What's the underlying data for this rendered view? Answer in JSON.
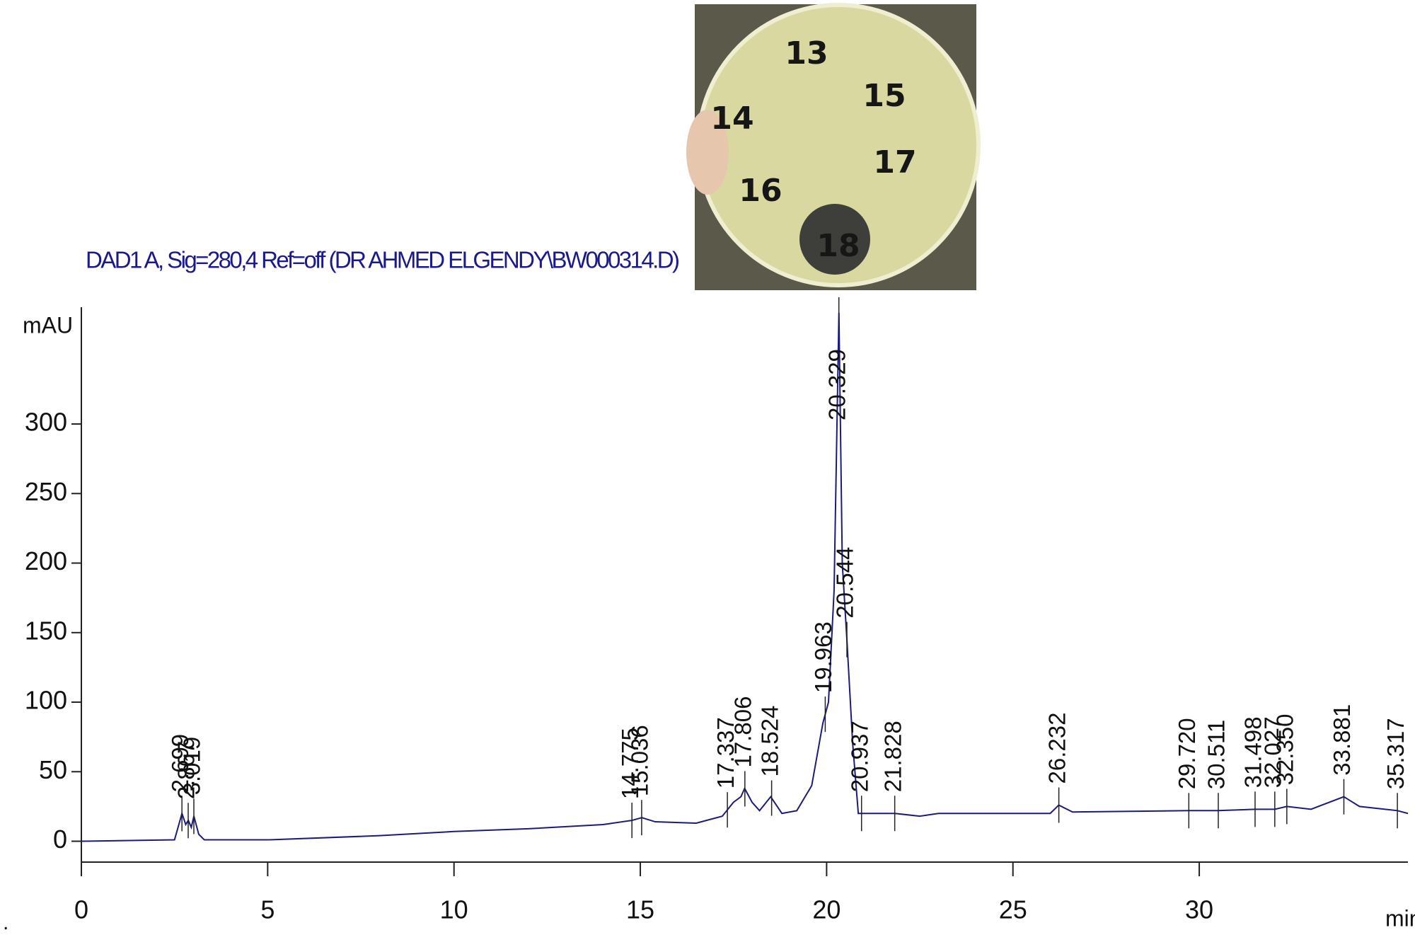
{
  "chart_data": {
    "type": "line",
    "title": "DAD1 A, Sig=280,4 Ref=off (DR AHMED ELGENDY\\BW000314.D)",
    "y_label": "mAU",
    "x_label": "min",
    "xlim": [
      0,
      35.6
    ],
    "ylim": [
      -15,
      384
    ],
    "xticks": [
      0,
      5,
      10,
      15,
      20,
      25,
      30
    ],
    "yticks": [
      0,
      50,
      100,
      150,
      200,
      250,
      300
    ],
    "x": [
      0,
      2.5,
      2.7,
      2.8,
      2.87,
      2.95,
      3.02,
      3.15,
      3.3,
      5,
      8,
      10,
      12,
      14,
      14.78,
      15.04,
      15.4,
      16.5,
      17.2,
      17.5,
      17.7,
      17.8,
      18.0,
      18.2,
      18.5,
      18.8,
      19.2,
      19.6,
      19.9,
      20.05,
      20.2,
      20.33,
      20.42,
      20.544,
      20.7,
      20.85,
      21,
      21.83,
      22.5,
      23,
      26,
      26.23,
      26.6,
      29.72,
      30.5,
      31.5,
      32.03,
      32.35,
      33,
      33.88,
      34.3,
      35.32,
      35.6
    ],
    "series": [
      {
        "color": "#1c1c7a",
        "values": [
          0,
          1,
          20,
          12,
          15,
          10,
          18,
          5,
          1,
          1,
          4,
          7,
          9,
          12,
          15,
          17,
          14,
          13,
          18,
          28,
          32,
          38,
          28,
          22,
          32,
          20,
          22,
          40,
          85,
          100,
          180,
          380,
          200,
          145,
          70,
          20,
          20,
          20,
          18,
          20,
          20,
          26,
          21,
          22,
          22,
          23,
          23,
          25,
          23,
          32,
          25,
          22,
          20
        ]
      }
    ],
    "peaks": {
      "values": [
        2.699,
        2.867,
        3.019,
        14.775,
        15.036,
        17.337,
        17.806,
        18.524,
        19.963,
        20.329,
        20.544,
        20.937,
        21.828,
        26.232,
        29.72,
        30.511,
        31.498,
        32.027,
        32.35,
        33.881,
        35.317
      ],
      "value_labels": [
        "2.699",
        "2.867",
        "3.019",
        "14.775",
        "15.036",
        "17.337",
        "17.806",
        "18.524",
        "19.963",
        "20.329",
        "20.544",
        "20.937",
        "21.828",
        "26.232",
        "29.720",
        "30.511",
        "31.498",
        "32.027",
        "32.350",
        "33.881",
        "35.317"
      ]
    }
  },
  "inset": {
    "labels": [
      "13",
      "14",
      "15",
      "16",
      "17",
      "18"
    ]
  },
  "footnote": "."
}
